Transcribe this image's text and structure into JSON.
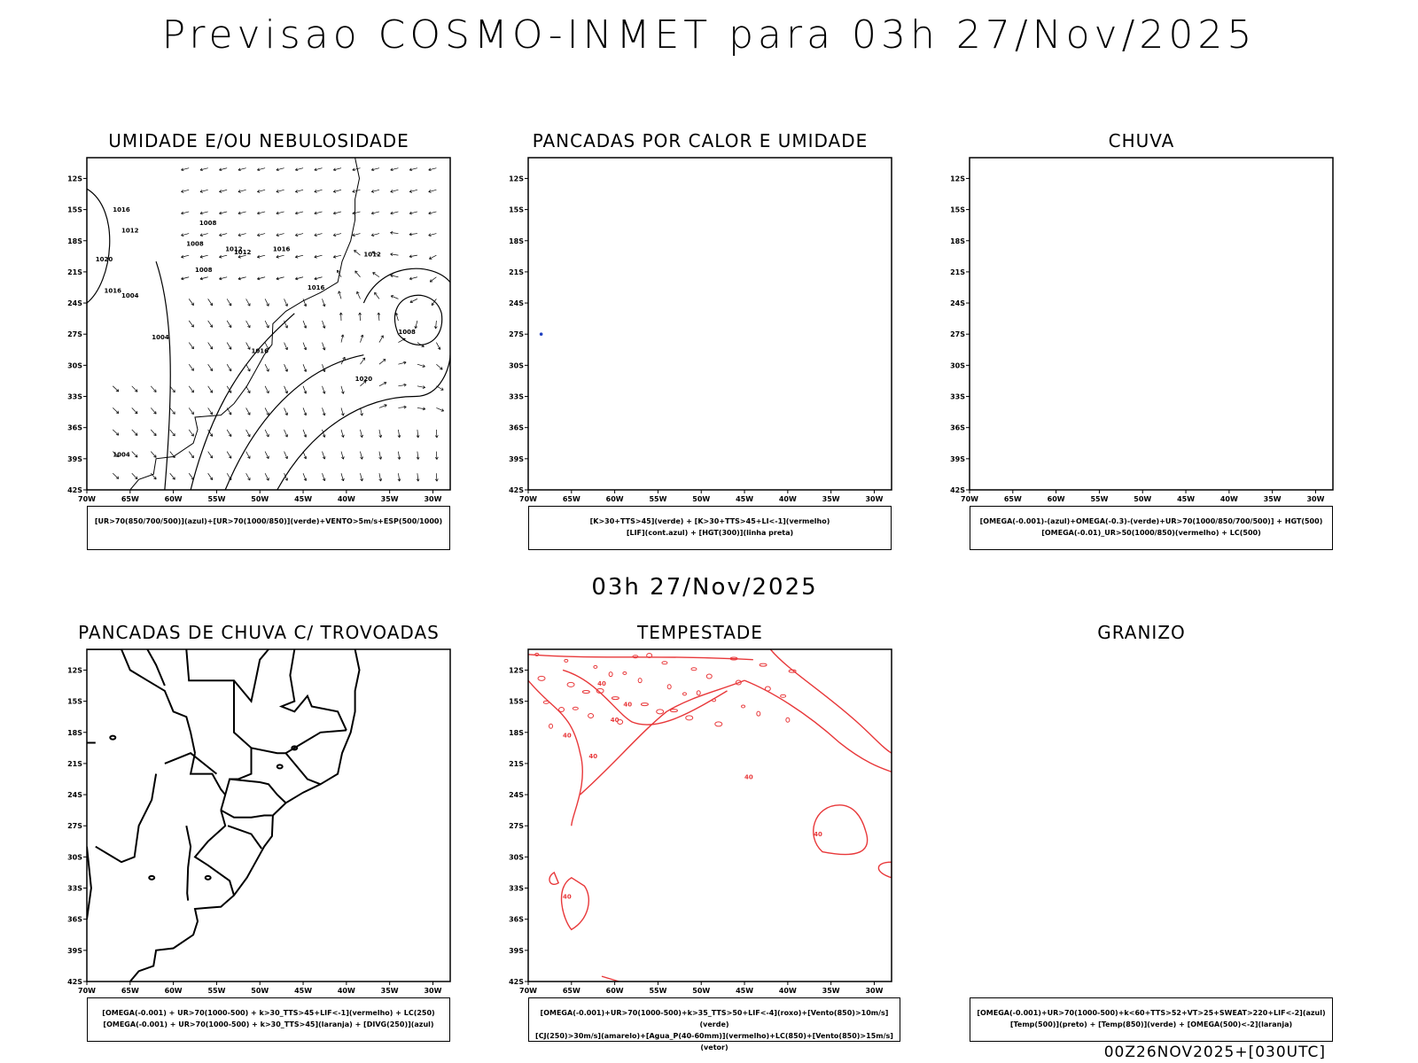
{
  "header": {
    "title": "Previsao COSMO-INMET  para 03h 27/Nov/2025"
  },
  "middle": {
    "label": "03h 27/Nov/2025"
  },
  "footer": {
    "run": "00Z26NOV2025+[030UTC]"
  },
  "axes": {
    "y_ticks": [
      "12S",
      "15S",
      "18S",
      "21S",
      "24S",
      "27S",
      "30S",
      "33S",
      "36S",
      "39S",
      "42S"
    ],
    "x_ticks": [
      "70W",
      "65W",
      "60W",
      "55W",
      "50W",
      "45W",
      "40W",
      "35W",
      "30W"
    ]
  },
  "panels": [
    {
      "title": "UMIDADE E/OU NEBULOSIDADE",
      "caption": [
        "[UR>70(850/700/500)](azul)+[UR>70(1000/850)](verde)+VENTO>5m/s+ESP(500/1000)"
      ],
      "isobar_labels": [
        "1016",
        "1012",
        "1008",
        "1020",
        "1016",
        "1004",
        "1012",
        "1008",
        "1008",
        "1004",
        "1012",
        "1016",
        "1012",
        "1016",
        "1008",
        "1016",
        "1020",
        "1004"
      ]
    },
    {
      "title": "PANCADAS POR CALOR E UMIDADE",
      "caption": [
        "[K>30+TTS>45](verde)  +  [K>30+TTS>45+LI<-1](vermelho)",
        "[LIF](cont.azul)  +  [HGT(300)](linha preta)"
      ]
    },
    {
      "title": "CHUVA",
      "caption": [
        "[OMEGA(-0.001)-(azul)+OMEGA(-0.3)-(verde)+UR>70(1000/850/700/500)]  +  HGT(500)",
        "[OMEGA(-0.01)_UR>50(1000/850)(vermelho)  +  LC(500)"
      ]
    },
    {
      "title": "PANCADAS DE CHUVA C/ TROVOADAS",
      "caption": [
        "[OMEGA(-0.001)  +  UR>70(1000-500)  +  k>30_TTS>45+LIF<-1](vermelho)  +  LC(250)",
        "[OMEGA(-0.001)  +  UR>70(1000-500)  +  k>30_TTS>45](laranja)  +  [DIVG(250)](azul)"
      ]
    },
    {
      "title": "TEMPESTADE",
      "caption": [
        "[OMEGA(-0.001)+UR>70(1000-500)+k>35_TTS>50+LIF<-4](roxo)+[Vento(850)>10m/s](verde)",
        "[CJ(250)>30m/s](amarelo)+[Agua_P(40-60mm)](vermelho)+LC(850)+[Vento(850)>15m/s](vetor)"
      ],
      "contour_labels": [
        "40",
        "40",
        "40",
        "40",
        "40",
        "40",
        "40",
        "40"
      ]
    },
    {
      "title": "GRANIZO",
      "caption": [
        "[OMEGA(-0.001)+UR>70(1000-500)+k<60+TTS>52+VT>25+SWEAT>220+LIF<-2](azul)",
        "[Temp(500)](preto)  +  [Temp(850)](verde)  +  [OMEGA(500)<-2](laranja)"
      ]
    }
  ],
  "colors": {
    "frame": "#000000",
    "tempestade_contour": "#e8383a",
    "lif_dot": "#2040c0"
  }
}
